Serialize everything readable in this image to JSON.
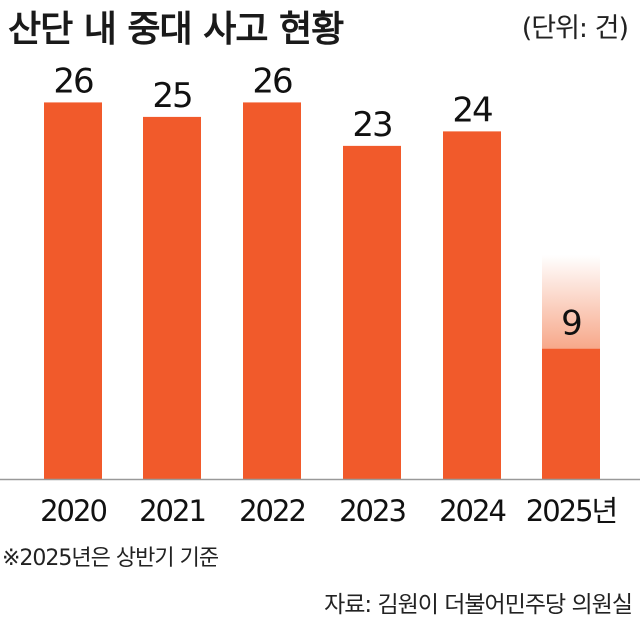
{
  "title": "산단 내 중대 사고 현황",
  "unit_label": "(단위: 건)",
  "note": "※2025년은 상반기 기준",
  "source": "자료: 김원이 더불어민주당 의원실",
  "colors": {
    "bar": "#f15a2b",
    "bar_light": "#f7a88a",
    "axis": "#999999"
  },
  "chart_data": {
    "type": "bar",
    "categories": [
      "2020",
      "2021",
      "2022",
      "2023",
      "2024",
      "2025년"
    ],
    "values": [
      26,
      25,
      26,
      23,
      24,
      9
    ],
    "data_labels": [
      "26",
      "25",
      "26",
      "23",
      "24",
      "9"
    ],
    "title": "산단 내 중대 사고 현황",
    "xlabel": "",
    "ylabel": "",
    "ylim": [
      0,
      31
    ],
    "grid": false,
    "legend": "none",
    "partial_year_category": "2025년"
  }
}
